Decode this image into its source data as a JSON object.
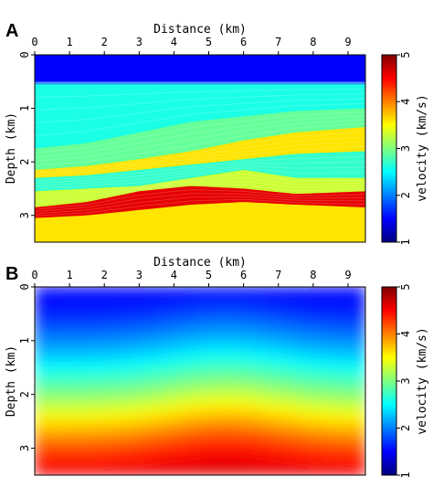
{
  "chart_data": [
    {
      "panel": "A",
      "type": "heatmap",
      "subtype": "velocity-model-section",
      "xlabel": "Distance (km)",
      "ylabel": "Depth (km)",
      "colorbar_label": "velocity (km/s)",
      "xlim": [
        0,
        9.5
      ],
      "ylim": [
        0,
        3.5
      ],
      "y_inverted": true,
      "x_ticks": [
        0,
        1,
        2,
        3,
        4,
        5,
        6,
        7,
        8,
        9
      ],
      "y_ticks": [
        0,
        1,
        2,
        3
      ],
      "clim": [
        1,
        5
      ],
      "cbar_ticks": [
        1,
        2,
        3,
        4,
        5
      ],
      "colormap": "jet",
      "water_velocity": 1.5,
      "water_depth": 0.5,
      "layers": [
        {
          "x": [
            0,
            1.5,
            3,
            4.5,
            6,
            7.5,
            9.5
          ],
          "depth": [
            0.55,
            0.55,
            0.55,
            0.55,
            0.55,
            0.55,
            0.55
          ],
          "velocity": 1.9
        },
        {
          "x": [
            0,
            1.5,
            3,
            4.5,
            6,
            7.5,
            9.5
          ],
          "depth": [
            1.75,
            1.65,
            1.45,
            1.25,
            1.15,
            1.05,
            1.0
          ],
          "velocity": 2.6
        },
        {
          "x": [
            0,
            1.5,
            3,
            4.5,
            6,
            7.5,
            9.5
          ],
          "depth": [
            2.15,
            2.08,
            1.95,
            1.8,
            1.6,
            1.45,
            1.35
          ],
          "velocity": 2.9
        },
        {
          "x": [
            0,
            1.5,
            3,
            4.5,
            6,
            7.5,
            9.5
          ],
          "depth": [
            2.3,
            2.25,
            2.15,
            2.05,
            1.95,
            1.85,
            1.8
          ],
          "velocity": 3.6
        },
        {
          "x": [
            0,
            1.5,
            3,
            4.5,
            6,
            7.5,
            9.5
          ],
          "depth": [
            2.55,
            2.5,
            2.45,
            2.3,
            2.15,
            2.3,
            2.3
          ],
          "velocity": 2.7
        },
        {
          "x": [
            0,
            1.5,
            3,
            4.5,
            6,
            7.5,
            9.5
          ],
          "depth": [
            2.85,
            2.75,
            2.55,
            2.45,
            2.5,
            2.6,
            2.55
          ],
          "velocity": 3.3
        },
        {
          "x": [
            0,
            1.5,
            3,
            4.5,
            6,
            7.5,
            9.5
          ],
          "depth": [
            3.05,
            3.0,
            2.9,
            2.8,
            2.75,
            2.8,
            2.85
          ],
          "velocity": 4.6
        },
        {
          "x": [
            0,
            1.5,
            3,
            4.5,
            6,
            7.5,
            9.5
          ],
          "depth": [
            3.5,
            3.5,
            3.5,
            3.5,
            3.5,
            3.5,
            3.5
          ],
          "velocity": 3.6
        }
      ]
    },
    {
      "panel": "B",
      "type": "heatmap",
      "subtype": "smoothed-velocity-model",
      "xlabel": "Distance (km)",
      "ylabel": "Depth (km)",
      "colorbar_label": "velocity (km/s)",
      "xlim": [
        0,
        9.5
      ],
      "ylim": [
        0,
        3.5
      ],
      "y_inverted": true,
      "x_ticks": [
        0,
        1,
        2,
        3,
        4,
        5,
        6,
        7,
        8,
        9
      ],
      "y_ticks": [
        0,
        1,
        2,
        3
      ],
      "clim": [
        1,
        5
      ],
      "cbar_ticks": [
        1,
        2,
        3,
        4,
        5
      ],
      "colormap": "jet",
      "velocity_profile": {
        "depth": [
          0,
          0.5,
          1.2,
          2.0,
          2.6,
          3.1,
          3.5
        ],
        "velocity": [
          1.5,
          1.6,
          2.2,
          3.0,
          3.7,
          4.3,
          4.6
        ]
      },
      "uplift_center_x": 5.5,
      "uplift_amount": 0.25
    }
  ],
  "labels": {
    "panel_a": "A",
    "panel_b": "B",
    "xlabel": "Distance (km)",
    "ylabel": "Depth (km)",
    "cbar_label": "velocity (km/s)"
  }
}
